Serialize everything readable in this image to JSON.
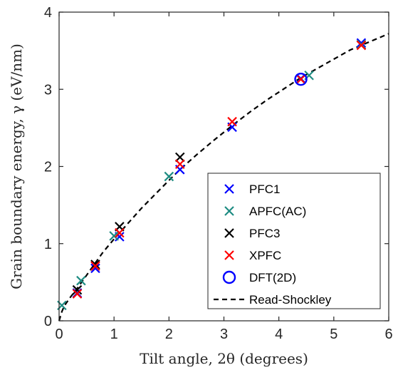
{
  "chart_data": {
    "type": "scatter",
    "xlabel": "Tilt angle, 2θ (degrees)",
    "ylabel": "Grain boundary energy, γ (eV/nm)",
    "xlim": [
      0,
      6
    ],
    "ylim": [
      0,
      4
    ],
    "x_ticks": [
      0,
      1,
      2,
      3,
      4,
      5,
      6
    ],
    "y_ticks": [
      0,
      1,
      2,
      3,
      4
    ],
    "grid": false,
    "legend_position": "bottom-right",
    "series": [
      {
        "name": "PFC1",
        "marker": "x",
        "color": "#0000ff",
        "points": [
          [
            0.33,
            0.36
          ],
          [
            0.66,
            0.68
          ],
          [
            1.1,
            1.09
          ],
          [
            2.2,
            1.96
          ],
          [
            3.15,
            2.51
          ],
          [
            4.4,
            3.14
          ],
          [
            5.5,
            3.6
          ]
        ]
      },
      {
        "name": "APFC(AC)",
        "marker": "x",
        "color": "#1e8c82",
        "points": [
          [
            0.05,
            0.2
          ],
          [
            0.4,
            0.52
          ],
          [
            1.0,
            1.1
          ],
          [
            2.0,
            1.87
          ],
          [
            4.55,
            3.18
          ],
          [
            5.5,
            3.58
          ]
        ]
      },
      {
        "name": "PFC3",
        "marker": "x",
        "color": "#000000",
        "points": [
          [
            0.33,
            0.4
          ],
          [
            0.66,
            0.73
          ],
          [
            1.1,
            1.22
          ],
          [
            2.2,
            2.12
          ]
        ]
      },
      {
        "name": "XPFC",
        "marker": "x",
        "color": "#ff0000",
        "points": [
          [
            0.33,
            0.35
          ],
          [
            0.66,
            0.71
          ],
          [
            1.1,
            1.14
          ],
          [
            2.2,
            2.03
          ],
          [
            3.15,
            2.58
          ],
          [
            4.4,
            3.13
          ],
          [
            5.5,
            3.57
          ]
        ]
      },
      {
        "name": "DFT(2D)",
        "marker": "o",
        "color": "#0000ff",
        "points": [
          [
            4.4,
            3.13
          ]
        ]
      },
      {
        "name": "Read-Shockley",
        "marker": "dashed-line",
        "color": "#000000",
        "curve": {
          "x": [
            0.0,
            0.05,
            0.1,
            0.2,
            0.33,
            0.5,
            0.66,
            0.8,
            1.0,
            1.1,
            1.3,
            1.5,
            1.75,
            2.0,
            2.2,
            2.5,
            2.8,
            3.15,
            3.5,
            3.8,
            4.1,
            4.4,
            4.7,
            5.0,
            5.3,
            5.5,
            5.8,
            6.0
          ],
          "y": [
            0.0,
            0.12,
            0.2,
            0.3,
            0.42,
            0.59,
            0.75,
            0.89,
            1.06,
            1.14,
            1.3,
            1.46,
            1.64,
            1.82,
            1.96,
            2.15,
            2.33,
            2.53,
            2.72,
            2.87,
            3.01,
            3.15,
            3.27,
            3.39,
            3.51,
            3.57,
            3.66,
            3.72
          ]
        }
      }
    ]
  }
}
